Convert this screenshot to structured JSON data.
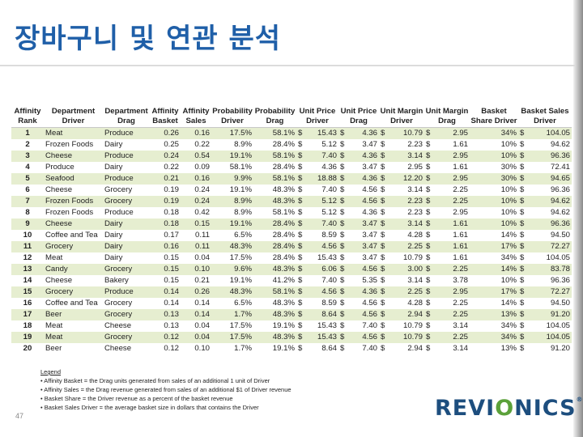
{
  "title": "장바구니 및 연관 분석",
  "columns": [
    "Affinity Rank",
    "Department Driver",
    "Department Drag",
    "Affinity Basket",
    "Affinity Sales",
    "Probability Driver",
    "Probability Drag",
    "Unit Price Driver",
    "Unit Price Drag",
    "Unit Margin Driver",
    "Unit Margin Drag",
    "Basket Share Driver",
    "Basket Sales Driver"
  ],
  "currency_symbol": "$",
  "rows": [
    [
      "1",
      "Meat",
      "Produce",
      "0.26",
      "0.16",
      "17.5%",
      "58.1%",
      "15.43",
      "4.36",
      "10.79",
      "2.95",
      "34%",
      "104.05"
    ],
    [
      "2",
      "Frozen Foods",
      "Dairy",
      "0.25",
      "0.22",
      "8.9%",
      "28.4%",
      "5.12",
      "3.47",
      "2.23",
      "1.61",
      "10%",
      "94.62"
    ],
    [
      "3",
      "Cheese",
      "Produce",
      "0.24",
      "0.54",
      "19.1%",
      "58.1%",
      "7.40",
      "4.36",
      "3.14",
      "2.95",
      "10%",
      "96.36"
    ],
    [
      "4",
      "Produce",
      "Dairy",
      "0.22",
      "0.09",
      "58.1%",
      "28.4%",
      "4.36",
      "3.47",
      "2.95",
      "1.61",
      "30%",
      "72.41"
    ],
    [
      "5",
      "Seafood",
      "Produce",
      "0.21",
      "0.16",
      "9.9%",
      "58.1%",
      "18.88",
      "4.36",
      "12.20",
      "2.95",
      "30%",
      "94.65"
    ],
    [
      "6",
      "Cheese",
      "Grocery",
      "0.19",
      "0.24",
      "19.1%",
      "48.3%",
      "7.40",
      "4.56",
      "3.14",
      "2.25",
      "10%",
      "96.36"
    ],
    [
      "7",
      "Frozen Foods",
      "Grocery",
      "0.19",
      "0.24",
      "8.9%",
      "48.3%",
      "5.12",
      "4.56",
      "2.23",
      "2.25",
      "10%",
      "94.62"
    ],
    [
      "8",
      "Frozen Foods",
      "Produce",
      "0.18",
      "0.42",
      "8.9%",
      "58.1%",
      "5.12",
      "4.36",
      "2.23",
      "2.95",
      "10%",
      "94.62"
    ],
    [
      "9",
      "Cheese",
      "Dairy",
      "0.18",
      "0.15",
      "19.1%",
      "28.4%",
      "7.40",
      "3.47",
      "3.14",
      "1.61",
      "10%",
      "96.36"
    ],
    [
      "10",
      "Coffee and Tea",
      "Dairy",
      "0.17",
      "0.11",
      "6.5%",
      "28.4%",
      "8.59",
      "3.47",
      "4.28",
      "1.61",
      "14%",
      "94.50"
    ],
    [
      "11",
      "Grocery",
      "Dairy",
      "0.16",
      "0.11",
      "48.3%",
      "28.4%",
      "4.56",
      "3.47",
      "2.25",
      "1.61",
      "17%",
      "72.27"
    ],
    [
      "12",
      "Meat",
      "Dairy",
      "0.15",
      "0.04",
      "17.5%",
      "28.4%",
      "15.43",
      "3.47",
      "10.79",
      "1.61",
      "34%",
      "104.05"
    ],
    [
      "13",
      "Candy",
      "Grocery",
      "0.15",
      "0.10",
      "9.6%",
      "48.3%",
      "6.06",
      "4.56",
      "3.00",
      "2.25",
      "14%",
      "83.78"
    ],
    [
      "14",
      "Cheese",
      "Bakery",
      "0.15",
      "0.21",
      "19.1%",
      "41.2%",
      "7.40",
      "5.35",
      "3.14",
      "3.78",
      "10%",
      "96.36"
    ],
    [
      "15",
      "Grocery",
      "Produce",
      "0.14",
      "0.26",
      "48.3%",
      "58.1%",
      "4.56",
      "4.36",
      "2.25",
      "2.95",
      "17%",
      "72.27"
    ],
    [
      "16",
      "Coffee and Tea",
      "Grocery",
      "0.14",
      "0.14",
      "6.5%",
      "48.3%",
      "8.59",
      "4.56",
      "4.28",
      "2.25",
      "14%",
      "94.50"
    ],
    [
      "17",
      "Beer",
      "Grocery",
      "0.13",
      "0.14",
      "1.7%",
      "48.3%",
      "8.64",
      "4.56",
      "2.94",
      "2.25",
      "13%",
      "91.20"
    ],
    [
      "18",
      "Meat",
      "Cheese",
      "0.13",
      "0.04",
      "17.5%",
      "19.1%",
      "15.43",
      "7.40",
      "10.79",
      "3.14",
      "34%",
      "104.05"
    ],
    [
      "19",
      "Meat",
      "Grocery",
      "0.12",
      "0.04",
      "17.5%",
      "48.3%",
      "15.43",
      "4.56",
      "10.79",
      "2.25",
      "34%",
      "104.05"
    ],
    [
      "20",
      "Beer",
      "Cheese",
      "0.12",
      "0.10",
      "1.7%",
      "19.1%",
      "8.64",
      "7.40",
      "2.94",
      "3.14",
      "13%",
      "91.20"
    ]
  ],
  "legend": {
    "title": "Legend",
    "items": [
      "• Affinity Basket = the Drag units generated from sales of an additional 1 unit of Driver",
      "• Affinity Sales = the Drag revenue generated from sales of an additional $1 of Driver revenue",
      "• Basket Share = the Driver revenue as a percent of the basket revenue",
      "• Basket Sales Driver = the average basket size in dollars that contains the Driver"
    ]
  },
  "page_number": "47",
  "logo": {
    "text_pre": "REVI",
    "text_o": "O",
    "text_post": "NICS",
    "mark": "®"
  },
  "colors": {
    "title": "#1f5fa8",
    "row_band": "#e6eed0",
    "logo_blue": "#1d4e7e",
    "logo_green": "#5ba13a"
  }
}
